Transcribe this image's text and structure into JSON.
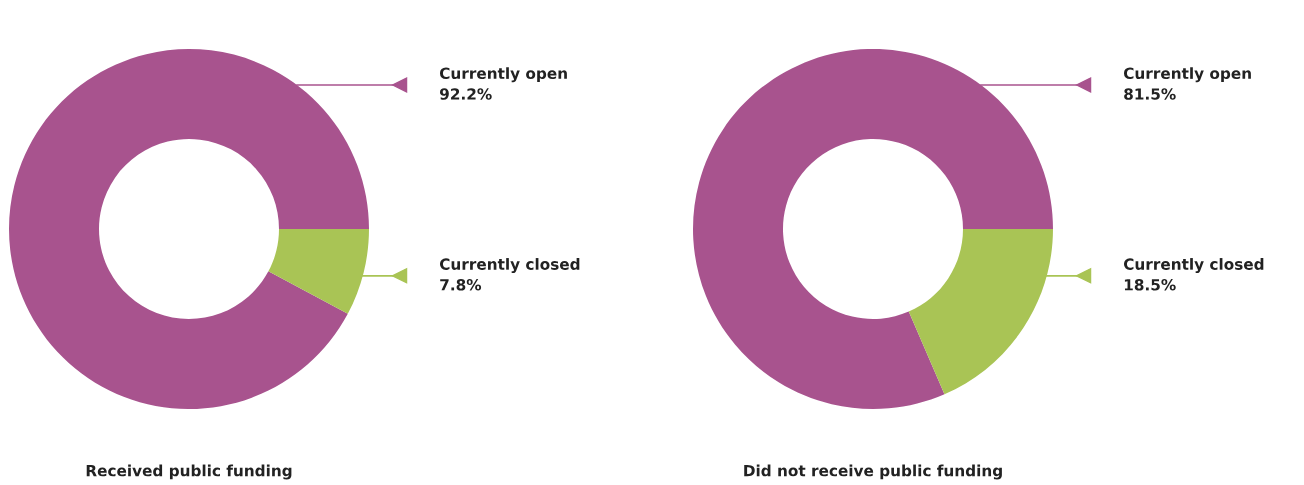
{
  "chart_data": [
    {
      "type": "donut",
      "title": "Received public funding",
      "categories": [
        "Currently open",
        "Currently closed"
      ],
      "values": [
        92.2,
        7.8
      ],
      "colors": [
        "#a8538e",
        "#a9c455"
      ],
      "value_labels": [
        "92.2%",
        "7.8%"
      ],
      "legend": "right"
    },
    {
      "type": "donut",
      "title": "Did not receive public funding",
      "categories": [
        "Currently open",
        "Currently closed"
      ],
      "values": [
        81.5,
        18.5
      ],
      "colors": [
        "#a8538e",
        "#a9c455"
      ],
      "value_labels": [
        "81.5%",
        "18.5%"
      ],
      "legend": "right"
    }
  ]
}
